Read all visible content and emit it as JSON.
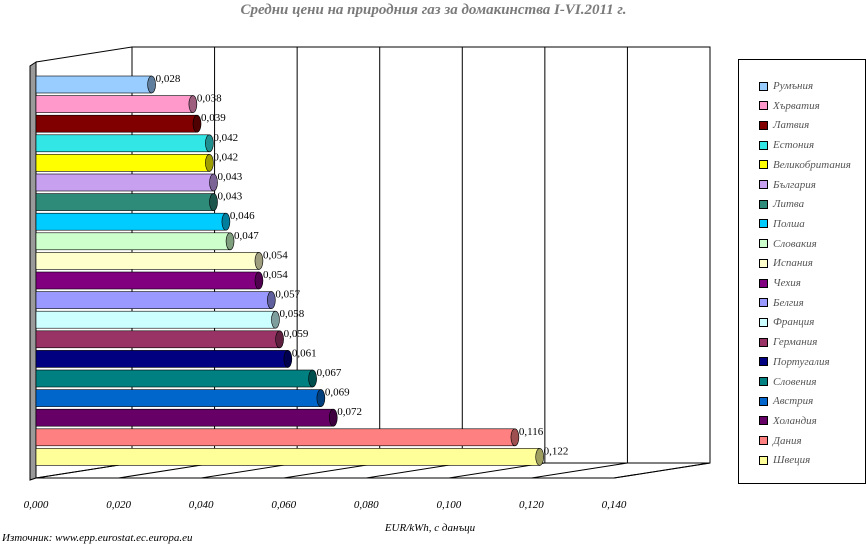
{
  "chart_data": {
    "type": "bar",
    "orientation": "horizontal",
    "title": "Средни цени на природния газ за домакинства I-VI.2011 г.",
    "xlabel": "EUR/kWh, с данъци",
    "xlim": [
      0,
      0.14
    ],
    "xticks": [
      "0,000",
      "0,020",
      "0,040",
      "0,060",
      "0,080",
      "0,100",
      "0,120",
      "0,140"
    ],
    "grid": true,
    "legend_position": "right",
    "categories": [
      "Румъния",
      "Хърватия",
      "Латвия",
      "Естония",
      "Великобритания",
      "България",
      "Литва",
      "Полша",
      "Словакия",
      "Испания",
      "Чехия",
      "Белгия",
      "Франция",
      "Германия",
      "Португалия",
      "Словения",
      "Австрия",
      "Холандия",
      "Дания",
      "Швеция"
    ],
    "values": [
      0.028,
      0.038,
      0.039,
      0.042,
      0.042,
      0.043,
      0.043,
      0.046,
      0.047,
      0.054,
      0.054,
      0.057,
      0.058,
      0.059,
      0.061,
      0.067,
      0.069,
      0.072,
      0.116,
      0.122
    ],
    "value_labels": [
      "0,028",
      "0,038",
      "0,039",
      "0,042",
      "0,042",
      "0,043",
      "0,043",
      "0,046",
      "0,047",
      "0,054",
      "0,054",
      "0,057",
      "0,058",
      "0,059",
      "0,061",
      "0,067",
      "0,069",
      "0,072",
      "0,116",
      "0,122"
    ],
    "colors": [
      "#99ccff",
      "#ff99cc",
      "#800000",
      "#33e6e6",
      "#ffff00",
      "#c8a0f0",
      "#2e8b7a",
      "#00ccff",
      "#ccffcc",
      "#ffffcc",
      "#800080",
      "#9999ff",
      "#ccffff",
      "#993366",
      "#000080",
      "#008080",
      "#0066cc",
      "#660066",
      "#ff8080",
      "#ffff99"
    ]
  },
  "source": "Източник: www.epp.eurostat.ec.europa.eu"
}
